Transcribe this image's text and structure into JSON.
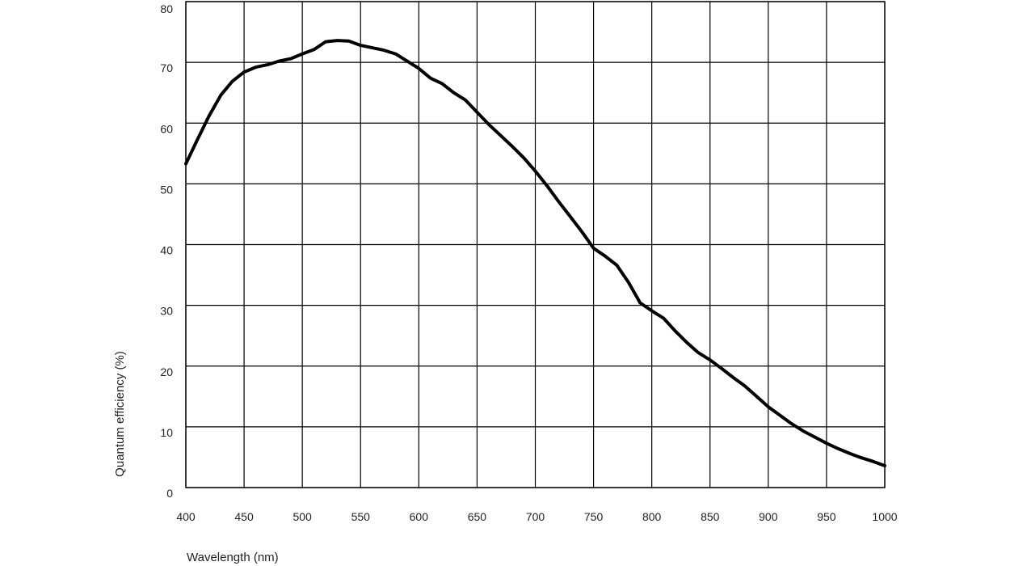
{
  "chart_data": {
    "type": "line",
    "title": "",
    "xlabel": "Wavelength (nm)",
    "ylabel": "Quantum efficiency (%)",
    "xlim": [
      400,
      1000
    ],
    "ylim": [
      0,
      80
    ],
    "x_ticks": [
      400,
      450,
      500,
      550,
      600,
      650,
      700,
      750,
      800,
      850,
      900,
      950,
      1000
    ],
    "y_ticks": [
      0,
      10,
      20,
      30,
      40,
      50,
      60,
      70,
      80
    ],
    "grid": true,
    "legend": "none",
    "line_color": "#000000",
    "series": [
      {
        "x": [
          400,
          410,
          420,
          430,
          440,
          450,
          460,
          470,
          480,
          490,
          500,
          510,
          520,
          530,
          540,
          550,
          560,
          570,
          580,
          590,
          600,
          610,
          620,
          630,
          640,
          650,
          660,
          670,
          680,
          690,
          700,
          710,
          720,
          730,
          740,
          750,
          760,
          770,
          780,
          790,
          800,
          810,
          820,
          830,
          840,
          850,
          860,
          870,
          880,
          890,
          900,
          910,
          920,
          930,
          940,
          950,
          960,
          970,
          980,
          990,
          1000
        ],
        "y": [
          53.3,
          57.3,
          61.2,
          64.6,
          66.9,
          68.4,
          69.2,
          69.6,
          70.2,
          70.6,
          71.4,
          72.1,
          73.4,
          73.6,
          73.5,
          72.8,
          72.4,
          72.0,
          71.4,
          70.2,
          69.0,
          67.4,
          66.5,
          65.0,
          63.8,
          61.8,
          59.8,
          58.0,
          56.2,
          54.3,
          52.1,
          49.7,
          47.1,
          44.6,
          42.1,
          39.4,
          38.1,
          36.6,
          33.8,
          30.4,
          29.1,
          27.9,
          25.8,
          23.9,
          22.2,
          21.0,
          19.6,
          18.1,
          16.7,
          15.0,
          13.3,
          11.9,
          10.5,
          9.3,
          8.3,
          7.3,
          6.4,
          5.6,
          4.9,
          4.3,
          3.6
        ]
      }
    ]
  }
}
